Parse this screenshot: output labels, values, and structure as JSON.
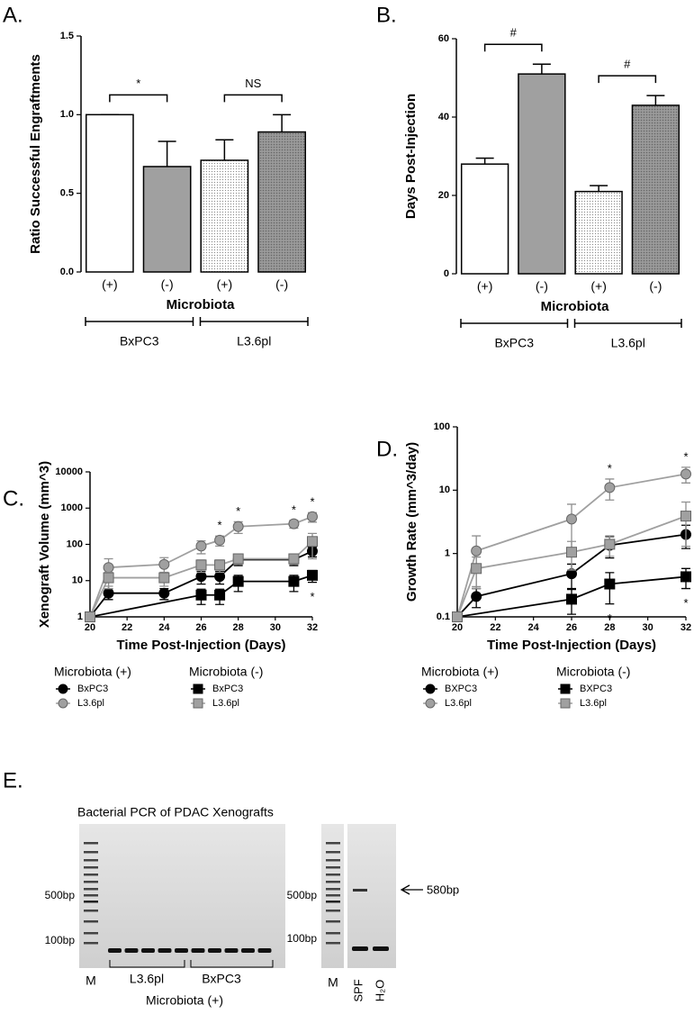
{
  "chart_data": [
    {
      "type": "bar",
      "label": "A.",
      "ylabel": "Ratio Successful Engraftments",
      "xlabel": "Microbiota",
      "categories": [
        "(+)",
        "(-)",
        "(+)",
        "(-)"
      ],
      "values": [
        1.0,
        0.67,
        0.71,
        0.89
      ],
      "errors": [
        0,
        0.16,
        0.13,
        0.11
      ],
      "patterns": [
        "white",
        "gray",
        "dots",
        "crosshatch"
      ],
      "ylim": [
        0,
        1.5
      ],
      "yticks": [
        {
          "value": 0,
          "label": "0.0"
        },
        {
          "value": 0.5,
          "label": "0.5"
        },
        {
          "value": 1,
          "label": "1.0"
        },
        {
          "value": 1.5,
          "label": "1.5"
        }
      ],
      "groups": [
        {
          "name": "BxPC3",
          "bars": [
            0,
            1
          ]
        },
        {
          "name": "L3.6pl",
          "bars": [
            2,
            3
          ]
        }
      ],
      "comparisons": [
        {
          "text": "*",
          "bars": [
            0,
            1
          ]
        },
        {
          "text": "NS",
          "bars": [
            2,
            3
          ]
        }
      ]
    },
    {
      "type": "bar",
      "label": "B.",
      "ylabel": "Days Post-Injection",
      "xlabel": "Microbiota",
      "categories": [
        "(+)",
        "(-)",
        "(+)",
        "(-)"
      ],
      "values": [
        28,
        51,
        21,
        43
      ],
      "errors": [
        1.5,
        2.5,
        1.5,
        2.5
      ],
      "patterns": [
        "white",
        "gray",
        "dots",
        "crosshatch"
      ],
      "ylim": [
        0,
        60
      ],
      "yticks": [
        0,
        20,
        40,
        60
      ],
      "groups": [
        {
          "name": "BxPC3",
          "bars": [
            0,
            1
          ]
        },
        {
          "name": "L3.6pl",
          "bars": [
            2,
            3
          ]
        }
      ],
      "comparisons": [
        {
          "text": "#",
          "bars": [
            0,
            1
          ]
        },
        {
          "text": "#",
          "bars": [
            2,
            3
          ]
        }
      ]
    },
    {
      "type": "line",
      "label": "C.",
      "ylabel": "Xenograft Volume (mm^3)",
      "xlabel": "Time Post-Injection (Days)",
      "log_y": true,
      "xlim": [
        20,
        32
      ],
      "xticks": [
        20,
        22,
        24,
        26,
        28,
        30,
        32
      ],
      "ylim": [
        1,
        10000
      ],
      "yticks": [
        1,
        10,
        100,
        1000,
        10000
      ],
      "legend_groups": [
        "Microbiota (+)",
        "Microbiota (-)"
      ],
      "series": [
        {
          "name": "BxPC3",
          "group": 0,
          "color": "#000000",
          "marker": "circle",
          "x": [
            20,
            21,
            24,
            26,
            27,
            28,
            31,
            32
          ],
          "values": [
            1,
            4.5,
            4.5,
            13,
            13,
            38,
            38,
            65
          ],
          "errors": [
            0,
            1.5,
            1.5,
            5,
            5,
            12,
            12,
            20
          ]
        },
        {
          "name": "L3.6pl",
          "group": 0,
          "color": "#a0a0a0",
          "marker": "circle",
          "x": [
            20,
            21,
            24,
            26,
            27,
            28,
            31,
            32
          ],
          "values": [
            1,
            23,
            28,
            90,
            130,
            310,
            370,
            580
          ],
          "errors": [
            0,
            17,
            15,
            35,
            40,
            110,
            90,
            170
          ]
        },
        {
          "name": "BxPC3",
          "group": 1,
          "color": "#000000",
          "marker": "square",
          "x": [
            20,
            26,
            27,
            28,
            31,
            32
          ],
          "values": [
            1,
            4,
            4,
            9.5,
            9.5,
            14
          ],
          "errors": [
            0,
            1.8,
            1.8,
            4.5,
            4.5,
            5
          ]
        },
        {
          "name": "L3.6pl",
          "group": 1,
          "color": "#a0a0a0",
          "marker": "square",
          "x": [
            20,
            21,
            24,
            26,
            27,
            28,
            31,
            32
          ],
          "values": [
            1,
            12,
            12,
            27,
            27,
            40,
            40,
            120
          ],
          "errors": [
            0,
            5,
            5,
            10,
            10,
            12,
            12,
            80
          ]
        }
      ],
      "annotations": [
        {
          "text": "*",
          "x": 27,
          "position": "above"
        },
        {
          "text": "*",
          "x": 28,
          "position": "above"
        },
        {
          "text": "*",
          "x": 31,
          "position": "above"
        },
        {
          "text": "*",
          "x": 32,
          "position": "above"
        },
        {
          "text": "*",
          "x": 32,
          "position": "below"
        }
      ]
    },
    {
      "type": "line",
      "label": "D.",
      "ylabel": "Growth Rate (mm^3/day)",
      "xlabel": "Time Post-Injection (Days)",
      "log_y": true,
      "xlim": [
        20,
        32
      ],
      "xticks": [
        20,
        22,
        24,
        26,
        28,
        30,
        32
      ],
      "ylim": [
        0.1,
        100
      ],
      "yticks": [
        0.1,
        1,
        10,
        100
      ],
      "legend_groups": [
        "Microbiota (+)",
        "Microbiota (-)"
      ],
      "series": [
        {
          "name": "BXPC3",
          "group": 0,
          "color": "#000000",
          "marker": "circle",
          "x": [
            20,
            21,
            26,
            28,
            32
          ],
          "values": [
            0.1,
            0.21,
            0.48,
            1.35,
            2.0
          ],
          "errors": [
            0,
            0.07,
            0.2,
            0.5,
            0.8
          ]
        },
        {
          "name": "L3.6pl",
          "group": 0,
          "color": "#a0a0a0",
          "marker": "circle",
          "x": [
            20,
            21,
            26,
            28,
            32
          ],
          "values": [
            0.1,
            1.1,
            3.5,
            11,
            18
          ],
          "errors": [
            0,
            0.8,
            2.5,
            4,
            5
          ]
        },
        {
          "name": "BXPC3",
          "group": 1,
          "color": "#000000",
          "marker": "square",
          "x": [
            20,
            26,
            28,
            32
          ],
          "values": [
            0.1,
            0.19,
            0.33,
            0.43
          ],
          "errors": [
            0,
            0.08,
            0.17,
            0.15
          ]
        },
        {
          "name": "L3.6pl",
          "group": 1,
          "color": "#a0a0a0",
          "marker": "square",
          "x": [
            20,
            21,
            26,
            28,
            32
          ],
          "values": [
            0.1,
            0.58,
            1.05,
            1.4,
            3.9
          ],
          "errors": [
            0,
            0.3,
            0.5,
            0.5,
            2.6
          ]
        }
      ],
      "annotations": [
        {
          "text": "*",
          "x": 28,
          "position": "above"
        },
        {
          "text": "*",
          "x": 32,
          "position": "above"
        },
        {
          "text": "*",
          "x": 28,
          "position": "below"
        },
        {
          "text": "*",
          "x": 32,
          "position": "below"
        }
      ]
    }
  ],
  "gel": {
    "label": "E.",
    "title": "Bacterial PCR of PDAC Xenografts",
    "left": {
      "ladder_labels": [
        "500bp",
        "100bp"
      ],
      "lane_label": "M",
      "groups": [
        "L3.6pl",
        "BxPC3"
      ],
      "caption": "Microbiota (+)"
    },
    "right": {
      "ladder_labels": [
        "500bp",
        "100bp"
      ],
      "lanes": [
        "M",
        "SPF",
        "H₂O"
      ]
    },
    "arrow_label": "580bp"
  }
}
